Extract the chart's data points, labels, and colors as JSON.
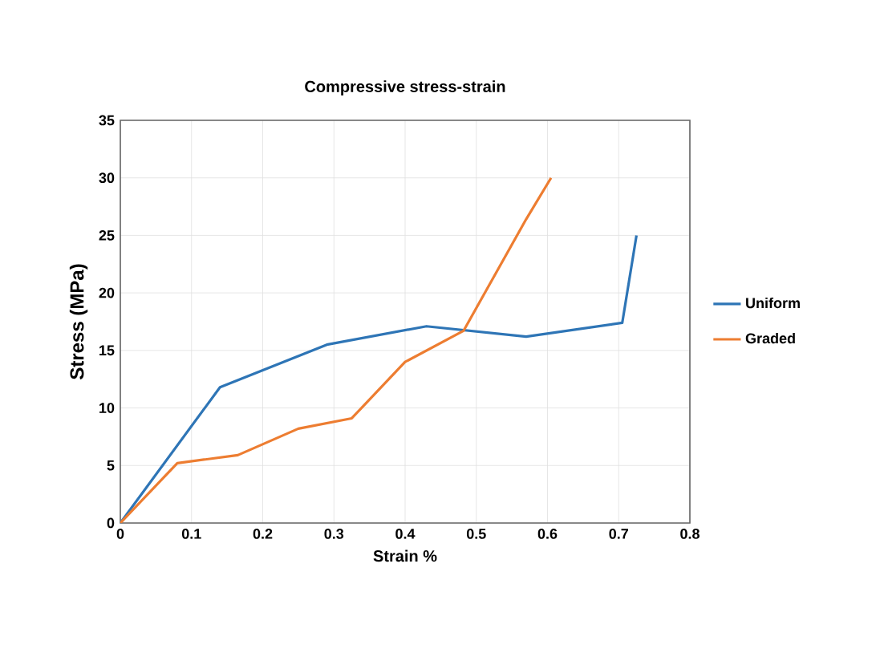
{
  "chart_data": {
    "type": "line",
    "title": "Compressive stress-strain",
    "xlabel": "Strain %",
    "ylabel": "Stress (MPa)",
    "series": [
      {
        "name": "Uniform",
        "color": "#2e75b6",
        "x": [
          0,
          0.14,
          0.29,
          0.43,
          0.57,
          0.705,
          0.725
        ],
        "values": [
          0,
          11.8,
          15.5,
          17.1,
          16.2,
          17.4,
          25
        ]
      },
      {
        "name": "Graded",
        "color": "#ed7d31",
        "x": [
          0,
          0.08,
          0.165,
          0.25,
          0.325,
          0.4,
          0.482,
          0.57,
          0.605
        ],
        "values": [
          0,
          5.2,
          5.9,
          8.2,
          9.1,
          14.0,
          16.7,
          26.4,
          30
        ]
      }
    ],
    "xlim": [
      0,
      0.8
    ],
    "xticks": [
      0,
      0.1,
      0.2,
      0.3,
      0.4,
      0.5,
      0.6,
      0.7,
      0.8
    ],
    "ylim": [
      0,
      35
    ],
    "yticks": [
      0,
      5,
      10,
      15,
      20,
      25,
      30,
      35
    ],
    "grid": true,
    "legend": "right",
    "marker": "none",
    "line_style": "solid"
  }
}
